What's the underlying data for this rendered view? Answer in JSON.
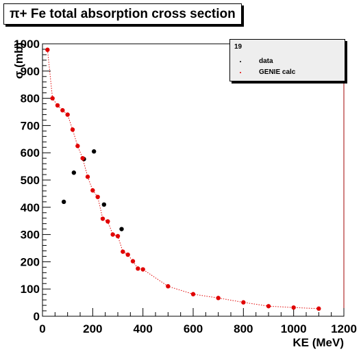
{
  "chart_data": {
    "type": "scatter",
    "title": "π+ Fe total absorption cross section",
    "xlabel": "KE (MeV)",
    "ylabel": "σ (mb)",
    "xlim": [
      0,
      1200
    ],
    "ylim": [
      0,
      1000
    ],
    "xticks": [
      "0",
      "200",
      "400",
      "600",
      "800",
      "1000",
      "1200"
    ],
    "yticks": [
      "0",
      "100",
      "200",
      "300",
      "400",
      "500",
      "600",
      "700",
      "800",
      "900",
      "1000"
    ],
    "grid": false,
    "legend": {
      "placement": "top-right",
      "header": "19",
      "entries": [
        "data",
        "GENIE calc"
      ]
    },
    "series": [
      {
        "name": "data",
        "color": "#000000",
        "marker": "circle",
        "line": false,
        "x": [
          85,
          125,
          165,
          205,
          245,
          315
        ],
        "y": [
          420,
          527,
          577,
          605,
          410,
          320
        ]
      },
      {
        "name": "GENIE calc",
        "color": "#e00000",
        "marker": "circle",
        "line": "dotted",
        "x": [
          20,
          40,
          60,
          80,
          100,
          120,
          140,
          160,
          180,
          200,
          220,
          240,
          260,
          280,
          300,
          320,
          340,
          360,
          380,
          400,
          500,
          600,
          700,
          800,
          900,
          1000,
          1100
        ],
        "y": [
          978,
          800,
          774,
          756,
          740,
          685,
          625,
          580,
          512,
          462,
          438,
          358,
          348,
          300,
          294,
          237,
          226,
          202,
          175,
          172,
          110,
          81,
          67,
          51,
          37,
          32,
          28
        ]
      }
    ]
  }
}
